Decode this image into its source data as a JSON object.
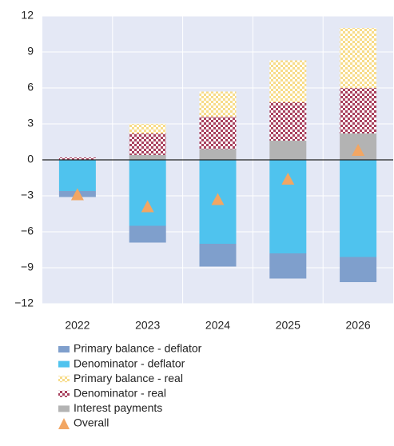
{
  "chart_data": {
    "type": "stacked_bar",
    "categories": [
      "2022",
      "2023",
      "2024",
      "2025",
      "2026"
    ],
    "series": [
      {
        "name": "Primary balance - deflator",
        "color": "#7f9fcc",
        "values": [
          -0.5,
          -1.4,
          -1.9,
          -2.1,
          -2.1
        ]
      },
      {
        "name": "Denominator - deflator",
        "color": "#4fc3ee",
        "values": [
          -2.6,
          -5.5,
          -7.0,
          -7.8,
          -8.1
        ]
      },
      {
        "name": "Primary balance - real",
        "color": "#f7dc8a",
        "pattern": "checker",
        "values": [
          0,
          0.8,
          2.1,
          3.5,
          5.0
        ]
      },
      {
        "name": "Denominator - real",
        "color": "#a8415e",
        "pattern": "checker",
        "values": [
          0.2,
          1.8,
          2.7,
          3.2,
          3.8
        ]
      },
      {
        "name": "Interest payments",
        "color": "#b3b3b3",
        "values": [
          0,
          0.4,
          0.9,
          1.6,
          2.2
        ]
      },
      {
        "name": "Overall",
        "color": "#f2a663",
        "marker": "triangle",
        "values": [
          -2.9,
          -3.9,
          -3.3,
          -1.6,
          0.8
        ]
      }
    ],
    "ylim": [
      -12,
      12
    ],
    "yticks": [
      12,
      9,
      6,
      3,
      0,
      {
        "value": -3,
        "label": "−3"
      },
      {
        "value": -6,
        "label": "−6"
      },
      {
        "value": -9,
        "label": "−9"
      },
      {
        "value": -12,
        "label": "−12"
      }
    ],
    "grid": true
  }
}
